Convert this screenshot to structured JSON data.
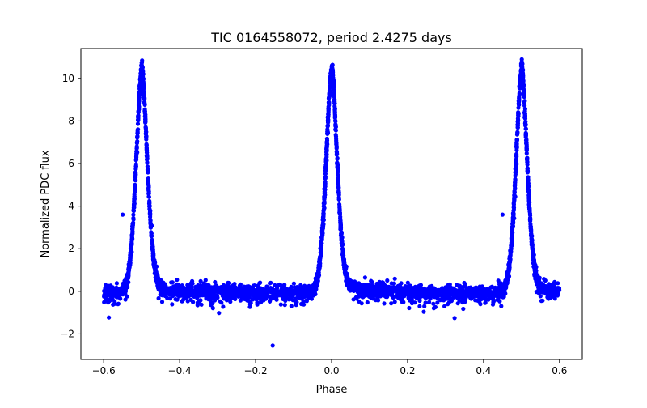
{
  "chart_data": {
    "type": "scatter",
    "title": "TIC 0164558072, period 2.4275 days",
    "xlabel": "Phase",
    "ylabel": "Normalized PDC flux",
    "xlim": [
      -0.66,
      0.66
    ],
    "ylim": [
      -3.2,
      11.4
    ],
    "xticks": [
      -0.6,
      -0.4,
      -0.2,
      0.0,
      0.2,
      0.4,
      0.6
    ],
    "xtick_labels": [
      "−0.6",
      "−0.4",
      "−0.2",
      "0.0",
      "0.2",
      "0.4",
      "0.6"
    ],
    "yticks": [
      -2,
      0,
      2,
      4,
      6,
      8,
      10
    ],
    "ytick_labels": [
      "−2",
      "0",
      "2",
      "4",
      "6",
      "8",
      "10"
    ],
    "grid": false,
    "marker_color": "#0000ff",
    "data_range": [
      -0.6,
      0.6
    ],
    "peaks": [
      {
        "phase": -0.5,
        "peak_flux": 10.5
      },
      {
        "phase": 0.0,
        "peak_flux": 10.5
      },
      {
        "phase": 0.5,
        "peak_flux": 10.5
      }
    ],
    "peak_sigma_phase": 0.014,
    "baseline_min_flux": -0.25,
    "noise_flux": 0.15,
    "outliers": [
      {
        "x": -0.55,
        "y": 3.6
      },
      {
        "x": 0.45,
        "y": 3.6
      },
      {
        "x": -0.155,
        "y": -2.55
      }
    ]
  }
}
